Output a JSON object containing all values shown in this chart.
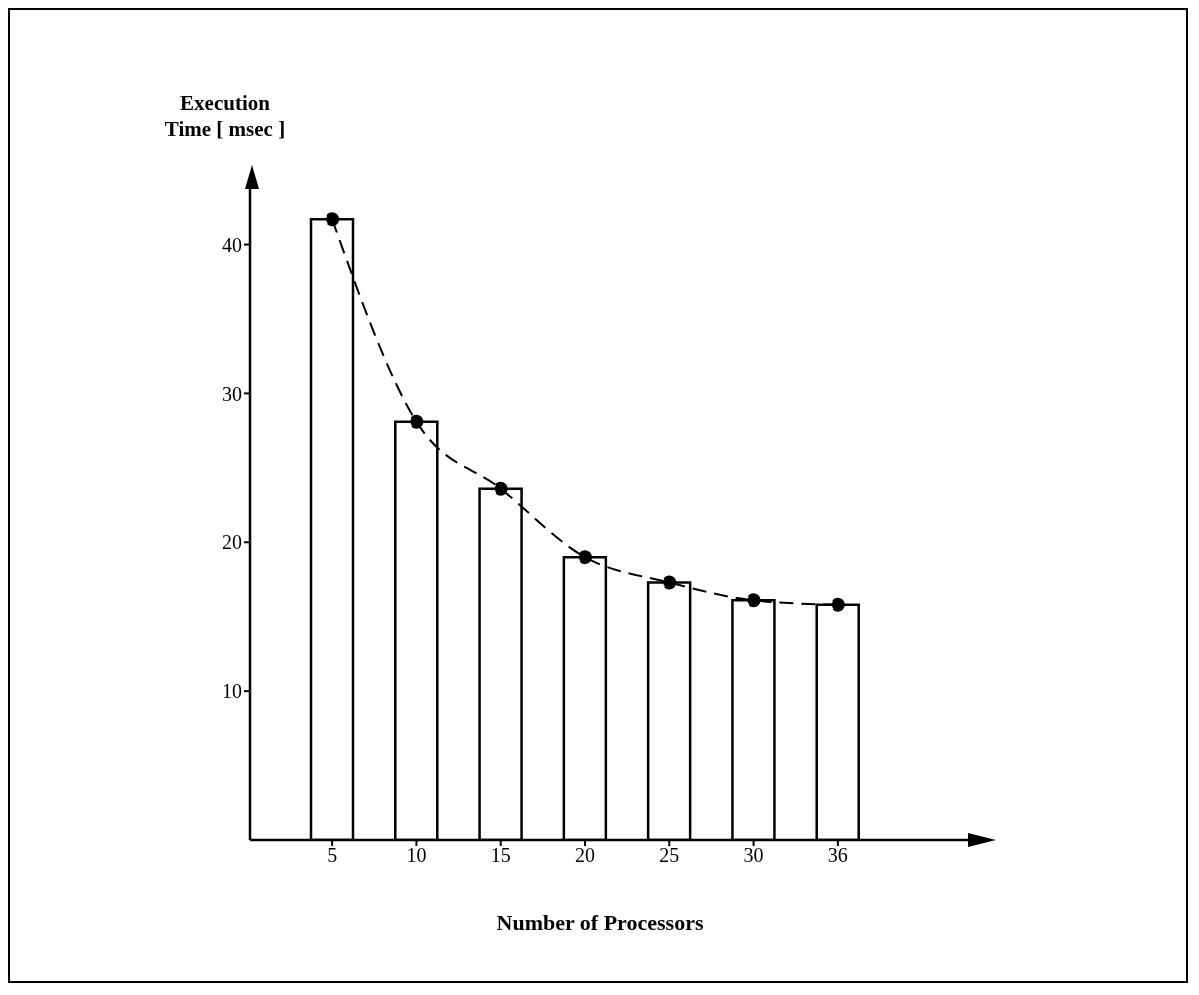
{
  "chart_data": {
    "type": "bar",
    "xlabel": "Number of Processors",
    "ylabel": "Execution Time [ msec ]",
    "categories": [
      "5",
      "10",
      "15",
      "20",
      "25",
      "30",
      "36"
    ],
    "series": [
      {
        "color": "#ffffff",
        "values": [
          41.7,
          28.1,
          23.6,
          19.0,
          17.3,
          16.1,
          15.8
        ]
      },
      {
        "type": "line",
        "color": "#000000",
        "marker": "circle",
        "line_style": "dashed",
        "values": [
          41.7,
          28.1,
          23.6,
          19.0,
          17.3,
          16.1,
          15.8
        ]
      }
    ],
    "ylim": [
      0,
      44
    ],
    "yticks": [
      10,
      20,
      30,
      40
    ]
  }
}
